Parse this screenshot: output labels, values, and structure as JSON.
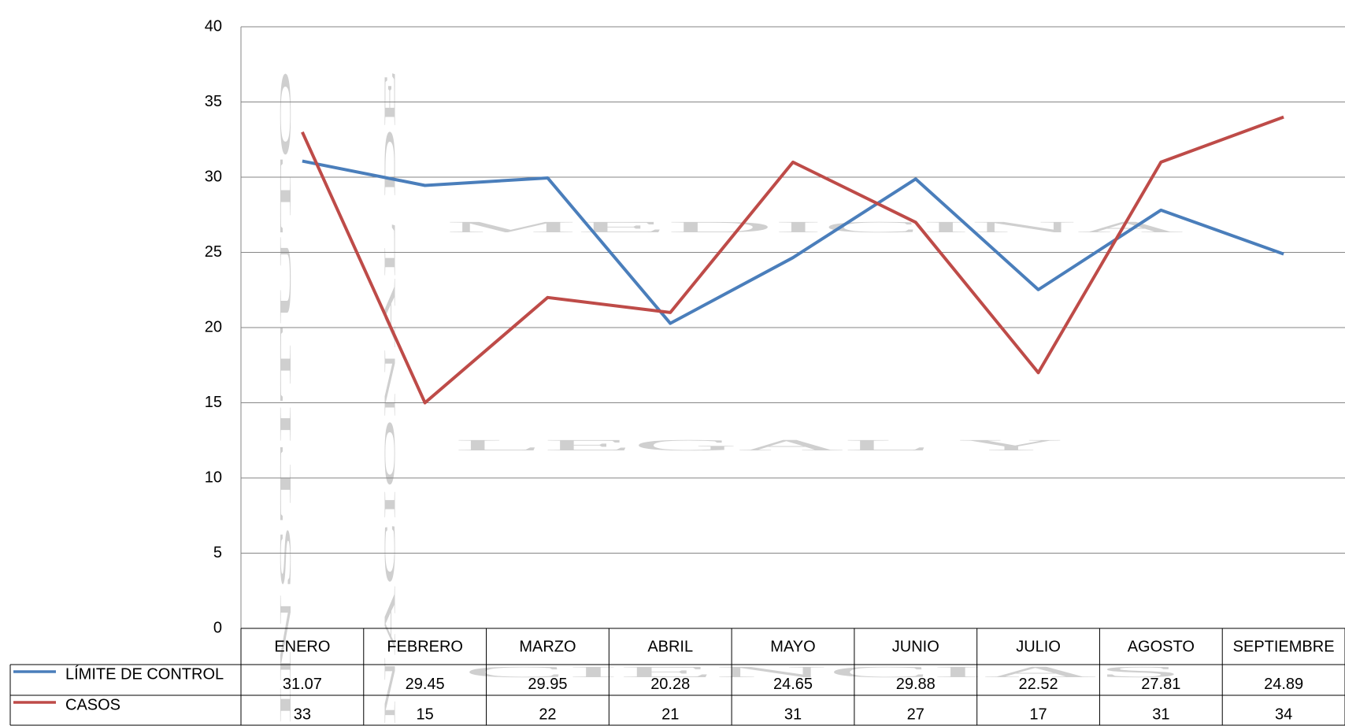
{
  "chart_data": {
    "type": "line",
    "watermark": [
      "INSTITUTO",
      "NACIONAL DE",
      "MEDICINA",
      "LEGAL Y",
      "CIENCIAS"
    ],
    "categories": [
      "ENERO",
      "FEBRERO",
      "MARZO",
      "ABRIL",
      "MAYO",
      "JUNIO",
      "JULIO",
      "AGOSTO",
      "SEPTIEMBRE"
    ],
    "series": [
      {
        "name": "LÍMITE DE CONTROL",
        "color": "#4a7ebb",
        "values": [
          31.07,
          29.45,
          29.95,
          20.28,
          24.65,
          29.88,
          22.52,
          27.81,
          24.89
        ]
      },
      {
        "name": "CASOS",
        "color": "#be4b48",
        "values": [
          33,
          15,
          22,
          21,
          31,
          27,
          17,
          31,
          34
        ]
      }
    ],
    "ylim": [
      0,
      40
    ],
    "yticks": [
      0,
      5,
      10,
      15,
      20,
      25,
      30,
      35,
      40
    ],
    "grid": true
  }
}
